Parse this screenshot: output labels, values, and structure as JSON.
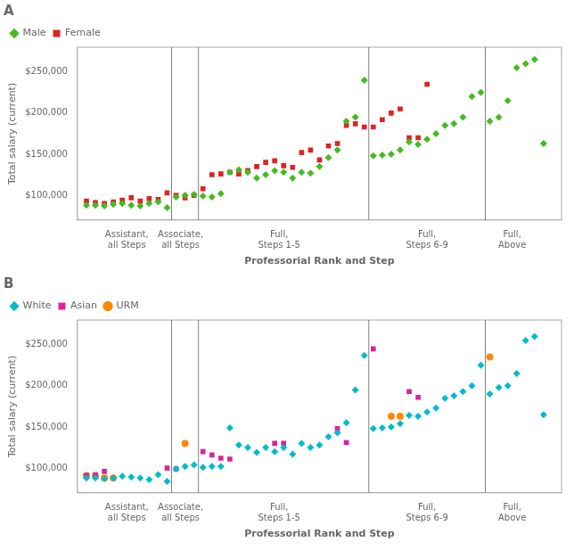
{
  "chart_data": [
    {
      "type": "scatter",
      "title": "A",
      "xlabel": "Professorial Rank and Step",
      "ylabel": "Total salary (current)",
      "xlim": [
        0,
        54
      ],
      "xticks": [
        {
          "value": 5.5,
          "label": "Assistant,\nall Steps"
        },
        {
          "value": 11.5,
          "label": "Associate,\nall Steps"
        },
        {
          "value": 22.5,
          "label": "Full,\nSteps 1-5"
        },
        {
          "value": 39.0,
          "label": "Full,\nSteps 6-9"
        },
        {
          "value": 48.5,
          "label": "Full,\nAbove"
        }
      ],
      "ylim": [
        70000,
        280000
      ],
      "yticks": [
        {
          "value": 100000,
          "label": "$100,000"
        },
        {
          "value": 150000,
          "label": "$150,000"
        },
        {
          "value": 200000,
          "label": "$200,000"
        },
        {
          "value": 250000,
          "label": "$250,000"
        }
      ],
      "vlines": [
        10.5,
        13.5,
        32.5,
        45.5
      ],
      "grid": false,
      "legend": "upper left",
      "series": [
        {
          "name": "Male",
          "color": "#44bb22",
          "marker": "diamond",
          "x": [
            1,
            2,
            3,
            4,
            5,
            6,
            7,
            8,
            9,
            10,
            11,
            12,
            13,
            14,
            15,
            16,
            17,
            18,
            19,
            20,
            21,
            22,
            23,
            24,
            25,
            26,
            27,
            28,
            29,
            30,
            31,
            32,
            33,
            34,
            35,
            36,
            37,
            38,
            39,
            40,
            41,
            42,
            43,
            44,
            45,
            46,
            47,
            48,
            49,
            50,
            51,
            52
          ],
          "values": [
            88000,
            88000,
            87000,
            89000,
            90000,
            88000,
            87000,
            90000,
            92000,
            85000,
            98000,
            100000,
            101000,
            99000,
            98000,
            102000,
            128000,
            131000,
            128000,
            121000,
            125000,
            130000,
            128000,
            121000,
            128000,
            127000,
            135000,
            146000,
            155000,
            190000,
            195000,
            240000,
            148000,
            149000,
            150000,
            155000,
            165000,
            162000,
            168000,
            175000,
            185000,
            187000,
            195000,
            220000,
            225000,
            190000,
            195000,
            215000,
            255000,
            260000,
            265000,
            163000
          ]
        },
        {
          "name": "Female",
          "color": "#dd2222",
          "marker": "square",
          "x": [
            1,
            2,
            3,
            4,
            5,
            6,
            7,
            8,
            9,
            10,
            11,
            12,
            13,
            14,
            15,
            16,
            17,
            18,
            19,
            20,
            21,
            22,
            23,
            24,
            25,
            26,
            27,
            28,
            29,
            30,
            31,
            32,
            33,
            34,
            35,
            36,
            37,
            38,
            39
          ],
          "values": [
            93000,
            91000,
            90000,
            92000,
            94000,
            97000,
            93000,
            96000,
            95000,
            103000,
            100000,
            97000,
            100000,
            108000,
            125000,
            126000,
            128000,
            126000,
            130000,
            135000,
            140000,
            142000,
            136000,
            134000,
            152000,
            155000,
            143000,
            160000,
            163000,
            185000,
            187000,
            183000,
            183000,
            192000,
            200000,
            205000,
            170000,
            170000,
            235000
          ]
        }
      ]
    },
    {
      "type": "scatter",
      "title": "B",
      "xlabel": "Professorial Rank and Step",
      "ylabel": "Total salary (current)",
      "xlim": [
        0,
        54
      ],
      "xticks": [
        {
          "value": 5.5,
          "label": "Assistant,\nall Steps"
        },
        {
          "value": 11.5,
          "label": "Associate,\nall Steps"
        },
        {
          "value": 22.5,
          "label": "Full,\nSteps 1-5"
        },
        {
          "value": 39.0,
          "label": "Full,\nSteps 6-9"
        },
        {
          "value": 48.5,
          "label": "Full,\nAbove"
        }
      ],
      "ylim": [
        70000,
        280000
      ],
      "yticks": [
        {
          "value": 100000,
          "label": "$100,000"
        },
        {
          "value": 150000,
          "label": "$150,000"
        },
        {
          "value": 200000,
          "label": "$200,000"
        },
        {
          "value": 250000,
          "label": "$250,000"
        }
      ],
      "vlines": [
        10.5,
        13.5,
        32.5,
        45.5
      ],
      "grid": false,
      "legend": "upper left",
      "series": [
        {
          "name": "White",
          "color": "#00bbcc",
          "marker": "diamond",
          "x": [
            1,
            2,
            3,
            4,
            5,
            6,
            7,
            8,
            9,
            10,
            11,
            12,
            13,
            14,
            15,
            16,
            17,
            18,
            19,
            20,
            21,
            22,
            23,
            24,
            25,
            26,
            27,
            28,
            29,
            30,
            31,
            32,
            33,
            34,
            35,
            36,
            37,
            38,
            39,
            40,
            41,
            42,
            43,
            44,
            45,
            46,
            47,
            48,
            49,
            50,
            51,
            52
          ],
          "values": [
            88000,
            88000,
            87000,
            88000,
            90000,
            89000,
            88000,
            86000,
            92000,
            84000,
            99000,
            102000,
            104000,
            101000,
            102000,
            102000,
            149000,
            128000,
            125000,
            119000,
            125000,
            120000,
            125000,
            117000,
            130000,
            125000,
            128000,
            138000,
            143000,
            155000,
            195000,
            237000,
            148000,
            149000,
            150000,
            154000,
            164000,
            163000,
            168000,
            173000,
            185000,
            188000,
            193000,
            200000,
            225000,
            190000,
            198000,
            200000,
            215000,
            255000,
            260000,
            165000
          ]
        },
        {
          "name": "Asian",
          "color": "#dd2299",
          "marker": "square",
          "x": [
            1,
            2,
            3,
            10,
            11,
            14,
            15,
            16,
            17,
            22,
            23,
            29,
            30,
            33,
            37,
            38
          ],
          "values": [
            91000,
            92000,
            96000,
            100000,
            99000,
            120000,
            116000,
            112000,
            111000,
            130000,
            130000,
            148000,
            131000,
            245000,
            193000,
            186000
          ]
        },
        {
          "name": "URM",
          "color": "#ff8800",
          "marker": "circle",
          "x": [
            1,
            2,
            3,
            4,
            12,
            35,
            36,
            46
          ],
          "values": [
            91000,
            90000,
            88000,
            88000,
            130000,
            163000,
            163000,
            235000
          ]
        }
      ]
    }
  ]
}
